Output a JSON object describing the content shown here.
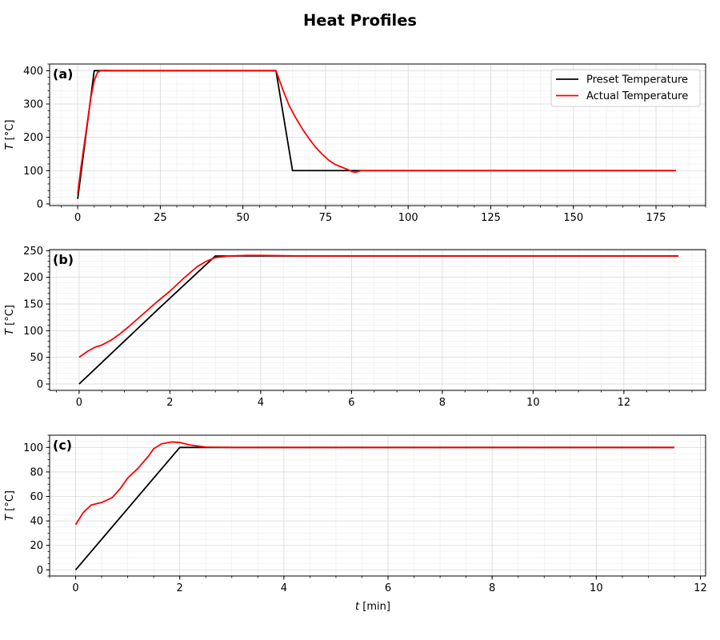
{
  "figure_title": "Heat Profiles",
  "chart_data": [
    {
      "type": "line",
      "panel_label": "(a)",
      "xlabel": "",
      "ylabel": "T [°C]",
      "ylabel_italic": "T",
      "ylabel_unit": " [°C]",
      "xlim": [
        -8.5,
        190
      ],
      "ylim": [
        -5,
        420
      ],
      "xticks": [
        0,
        25,
        50,
        75,
        100,
        125,
        150,
        175
      ],
      "yticks": [
        0,
        100,
        200,
        300,
        400
      ],
      "grid": true,
      "legend_position": "top-right",
      "series": [
        {
          "name": "Preset Temperature",
          "color": "#000000",
          "x": [
            0,
            5,
            60,
            65,
            181
          ],
          "y": [
            15,
            400,
            400,
            100,
            100
          ]
        },
        {
          "name": "Actual Temperature",
          "color": "#ff0000",
          "x": [
            0,
            1,
            2,
            3,
            4,
            5,
            6,
            7,
            8,
            10,
            20,
            40,
            55,
            60,
            62,
            64,
            66,
            68,
            70,
            72,
            74,
            76,
            78,
            80,
            82,
            83,
            84,
            85,
            86,
            88,
            100,
            120,
            150,
            181
          ],
          "y": [
            30,
            110,
            180,
            250,
            320,
            370,
            395,
            400,
            401,
            400,
            400,
            400,
            400,
            400,
            345,
            295,
            258,
            225,
            196,
            170,
            149,
            131,
            118,
            110,
            102,
            97,
            95,
            98,
            100,
            100,
            100,
            100,
            100,
            100
          ]
        }
      ]
    },
    {
      "type": "line",
      "panel_label": "(b)",
      "xlabel": "",
      "ylabel": "T [°C]",
      "ylabel_italic": "T",
      "ylabel_unit": " [°C]",
      "xlim": [
        -0.65,
        13.8
      ],
      "ylim": [
        -12,
        252
      ],
      "xticks": [
        0,
        2,
        4,
        6,
        8,
        10,
        12
      ],
      "yticks": [
        0,
        50,
        100,
        150,
        200,
        250
      ],
      "grid": true,
      "series": [
        {
          "name": "Preset Temperature",
          "color": "#000000",
          "x": [
            0,
            1.8,
            3.0,
            13.2
          ],
          "y": [
            0,
            145,
            240,
            240
          ]
        },
        {
          "name": "Actual Temperature",
          "color": "#ff0000",
          "x": [
            0,
            0.2,
            0.35,
            0.5,
            0.7,
            0.9,
            1.1,
            1.3,
            1.5,
            1.7,
            2.0,
            2.3,
            2.6,
            2.8,
            3.0,
            3.3,
            3.7,
            4.0,
            5.0,
            7.0,
            10.0,
            13.2
          ],
          "y": [
            50,
            62,
            69,
            73,
            82,
            94,
            108,
            123,
            138,
            153,
            174,
            198,
            220,
            230,
            237,
            240,
            241,
            241,
            240,
            240,
            240,
            240
          ]
        }
      ]
    },
    {
      "type": "line",
      "panel_label": "(c)",
      "xlabel": "t [min]",
      "xlabel_italic": "t",
      "xlabel_unit": " [min]",
      "ylabel": "T [°C]",
      "ylabel_italic": "T",
      "ylabel_unit": " [°C]",
      "xlim": [
        -0.5,
        12.1
      ],
      "ylim": [
        -5,
        110
      ],
      "xticks": [
        0,
        2,
        4,
        6,
        8,
        10,
        12
      ],
      "yticks": [
        0,
        20,
        40,
        60,
        80,
        100
      ],
      "grid": true,
      "series": [
        {
          "name": "Preset Temperature",
          "color": "#000000",
          "x": [
            0,
            2.0,
            11.5
          ],
          "y": [
            0,
            100,
            100
          ]
        },
        {
          "name": "Actual Temperature",
          "color": "#ff0000",
          "x": [
            0,
            0.15,
            0.3,
            0.5,
            0.7,
            0.85,
            1.0,
            1.2,
            1.4,
            1.5,
            1.65,
            1.85,
            2.0,
            2.2,
            2.5,
            3.0,
            4.0,
            6.0,
            8.0,
            11.5
          ],
          "y": [
            37,
            47,
            53,
            55,
            59,
            66,
            75,
            83,
            93,
            99,
            103,
            104.5,
            104,
            102,
            100.3,
            100,
            100,
            100,
            100,
            100
          ]
        }
      ]
    }
  ]
}
